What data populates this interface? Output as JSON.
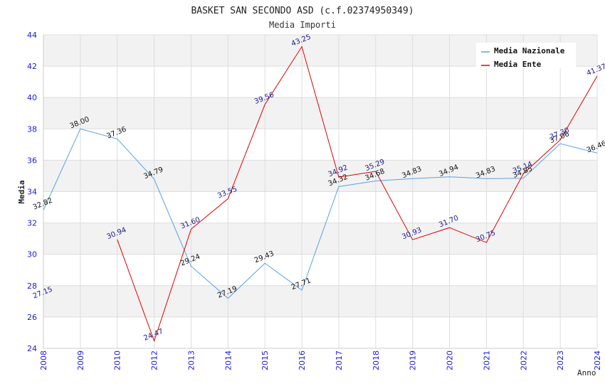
{
  "chart_data": {
    "type": "line",
    "title": "BASKET SAN SECONDO ASD (c.f.02374950349)",
    "subtitle": "Media Importi",
    "xlabel": "Anno",
    "ylabel": "Media",
    "categories": [
      "2008",
      "2009",
      "2010",
      "2012",
      "2013",
      "2014",
      "2015",
      "2016",
      "2017",
      "2018",
      "2019",
      "2020",
      "2021",
      "2022",
      "2023",
      "2024"
    ],
    "ylim": [
      24,
      44
    ],
    "yticks": [
      "24",
      "26",
      "28",
      "30",
      "32",
      "34",
      "36",
      "38",
      "40",
      "42",
      "44"
    ],
    "legend_position": "top-right",
    "series": [
      {
        "name": "Media Nazionale",
        "color": "#5aa0e6",
        "label_color": "#111111",
        "values": [
          32.82,
          38.0,
          37.36,
          34.79,
          29.24,
          27.19,
          29.43,
          27.71,
          34.32,
          34.68,
          34.83,
          34.94,
          34.83,
          34.85,
          37.06,
          36.46
        ],
        "labels": [
          "32.82",
          "38.00",
          "37.36",
          "34.79",
          "29.24",
          "27.19",
          "29.43",
          "27.71",
          "34.32",
          "34.68",
          "34.83",
          "34.94",
          "34.83",
          "34.85",
          "37.06",
          "36.46"
        ]
      },
      {
        "name": "Media Ente",
        "color": "#e00000",
        "label_color": "#1a1a8c",
        "values": [
          27.15,
          null,
          30.94,
          24.47,
          31.6,
          33.55,
          39.56,
          43.25,
          34.92,
          35.29,
          30.93,
          31.7,
          30.75,
          35.14,
          37.3,
          41.37
        ],
        "labels": [
          "27.15",
          "",
          "30.94",
          "24.47",
          "31.60",
          "33.55",
          "39.56",
          "43.25",
          "34.92",
          "35.29",
          "30.93",
          "31.70",
          "30.75",
          "35.14",
          "37.30",
          "41.37"
        ]
      }
    ]
  }
}
